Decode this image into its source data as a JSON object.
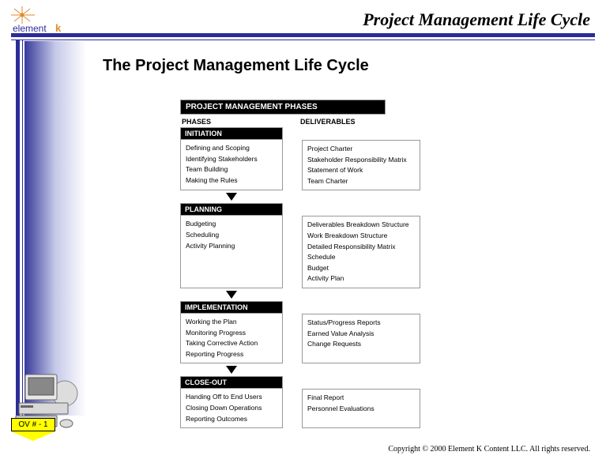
{
  "brand": {
    "name_a": "element",
    "name_b": "k"
  },
  "header": {
    "title": "Project Management Life Cycle"
  },
  "slide": {
    "title": "The Project Management Life Cycle"
  },
  "diagram": {
    "banner": "PROJECT MANAGEMENT PHASES",
    "col_phases": "PHASES",
    "col_deliv": "DELIVERABLES",
    "phases": [
      {
        "name": "INITIATION",
        "acts": [
          "Defining and Scoping",
          "Identifying Stakeholders",
          "Team Building",
          "Making the Rules"
        ],
        "deliv": [
          "Project Charter",
          "Stakeholder Responsibility Matrix",
          "Statement of Work",
          "Team Charter"
        ]
      },
      {
        "name": "PLANNING",
        "acts": [
          "Budgeting",
          "Scheduling",
          "Activity Planning"
        ],
        "deliv": [
          "Deliverables Breakdown Structure",
          "Work Breakdown Structure",
          "Detailed Responsibility Matrix",
          "Schedule",
          "Budget",
          "Activity Plan"
        ]
      },
      {
        "name": "IMPLEMENTATION",
        "acts": [
          "Working the Plan",
          "Monitoring Progress",
          "Taking Corrective Action",
          "Reporting Progress"
        ],
        "deliv": [
          "Status/Progress Reports",
          "Earned Value Analysis",
          "Change Requests"
        ]
      },
      {
        "name": "CLOSE-OUT",
        "acts": [
          "Handing Off to End Users",
          "Closing Down Operations",
          "Reporting Outcomes"
        ],
        "deliv": [
          "Final Report",
          "Personnel Evaluations"
        ]
      }
    ]
  },
  "footer": {
    "ov": "OV # - 1",
    "copyright": "Copyright © 2000 Element K Content LLC. All rights reserved."
  },
  "colors": {
    "rule": "#2b2b99",
    "badge_bg": "#ffff00",
    "box_border": "#999999",
    "phase_head_bg": "#000000",
    "phase_head_fg": "#ffffff"
  }
}
